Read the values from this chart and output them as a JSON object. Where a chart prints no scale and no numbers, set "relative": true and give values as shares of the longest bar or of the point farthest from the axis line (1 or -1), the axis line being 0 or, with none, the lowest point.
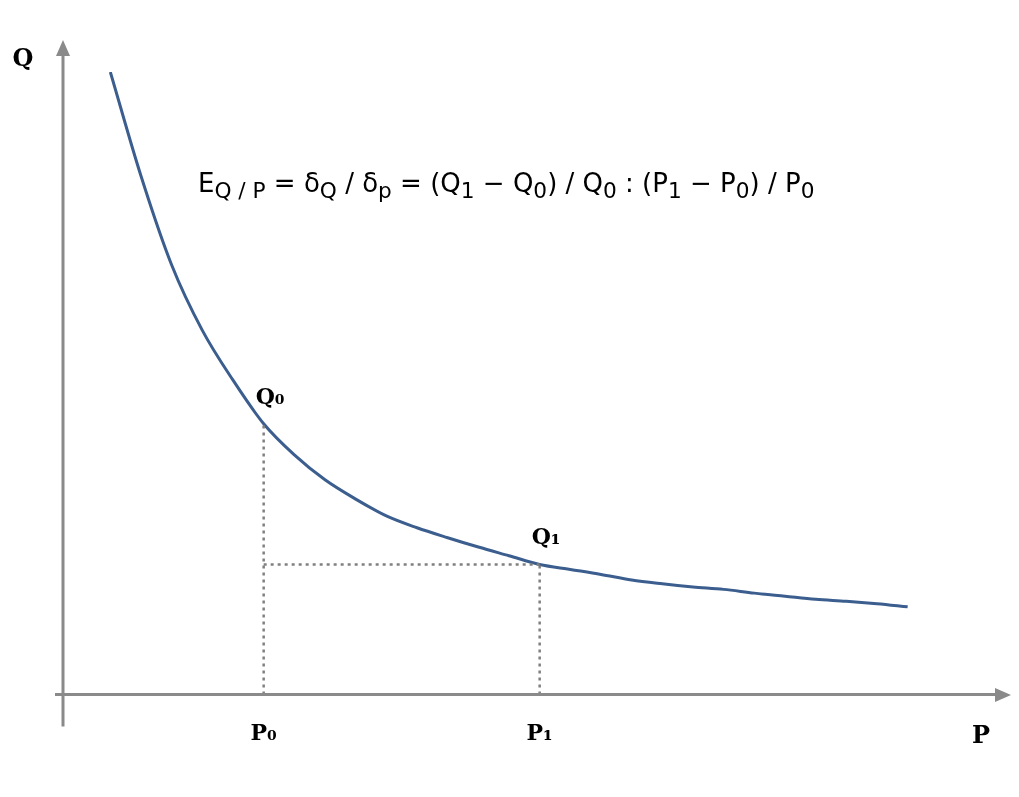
{
  "chart_data": {
    "type": "line",
    "relative": true,
    "categories": [
      null,
      null,
      null,
      null,
      null,
      "P₀",
      null,
      null,
      null,
      null,
      null,
      null,
      null,
      null,
      "P₁",
      null,
      null,
      null,
      null,
      null,
      null,
      null,
      null,
      null,
      null,
      null,
      null
    ],
    "series": [
      {
        "color": "#3b5e8f",
        "values": [
          1,
          0.833,
          0.69,
          0.585,
          0.505,
          0.435,
          0.385,
          0.345,
          0.314,
          0.287,
          0.268,
          0.252,
          0.237,
          0.223,
          0.209,
          0.201,
          0.193,
          0.184,
          0.178,
          0.173,
          0.169,
          0.163,
          0.158,
          0.153,
          0.15,
          0.146,
          0.141
        ]
      }
    ],
    "xlabel": "P",
    "ylabel": "Q",
    "marker": "none",
    "line_style": "solid",
    "grid": false,
    "legend": false,
    "annotations": [
      "E$_{Q / P}$ = δ$_{Q}$ / δ$_{p}$ = (Q$_{1}$ − Q$_{0}$) / Q$_{0}$ : (P$_{1}$ − P$_{0}$) / P$_{0}$",
      {
        "text": "Q₀",
        "x": "P₀",
        "y": 0.435
      },
      {
        "text": "Q₁",
        "x": "P₁",
        "y": 0.209
      }
    ],
    "ref_lines": [
      {
        "axis": "x",
        "value": "P₀",
        "color": "#808080",
        "line_style": "dotted"
      },
      {
        "axis": "x",
        "value": "P₁",
        "color": "#808080",
        "line_style": "dotted"
      },
      {
        "axis": "y",
        "value": 0.209,
        "color": "#808080",
        "line_style": "dotted"
      }
    ]
  }
}
